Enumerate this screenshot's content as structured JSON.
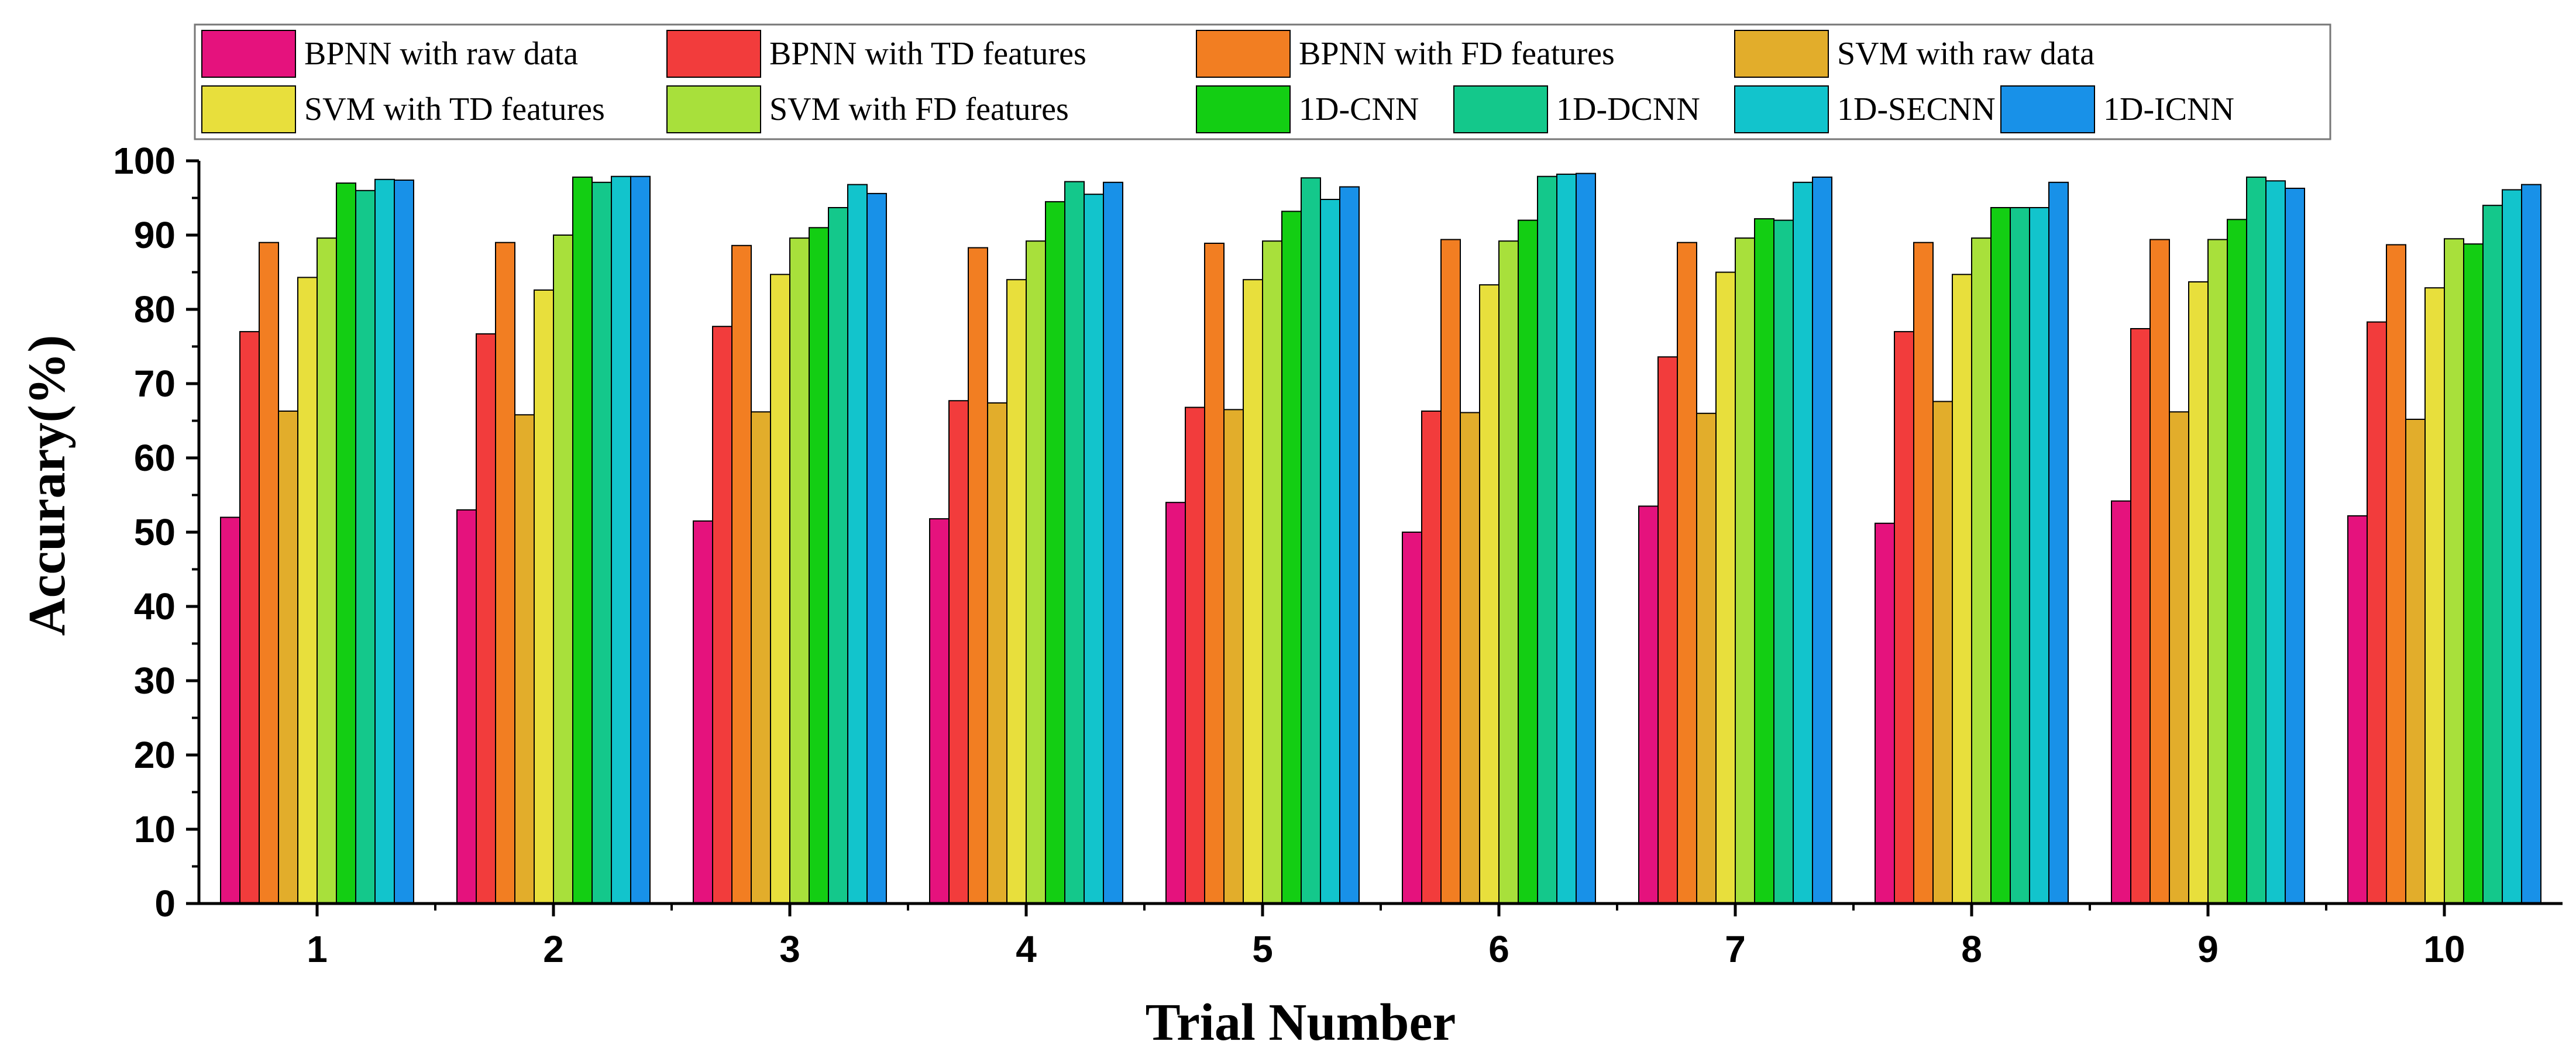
{
  "chart_data": {
    "type": "bar",
    "title": "",
    "xlabel": "Trial Number",
    "ylabel": "Accurary(%)",
    "ylim": [
      0,
      100
    ],
    "yticks": [
      0,
      10,
      20,
      30,
      40,
      50,
      60,
      70,
      80,
      90,
      100
    ],
    "legend_position": "top",
    "categories": [
      "1",
      "2",
      "3",
      "4",
      "5",
      "6",
      "7",
      "8",
      "9",
      "10"
    ],
    "series": [
      {
        "name": "BPNN with raw data",
        "color": "#E5127D",
        "values": [
          52.0,
          53.0,
          51.5,
          51.8,
          54.0,
          50.0,
          53.5,
          51.2,
          54.2,
          52.2
        ]
      },
      {
        "name": "BPNN with TD features",
        "color": "#F23C3C",
        "values": [
          77.0,
          76.7,
          77.7,
          67.7,
          66.8,
          66.3,
          73.6,
          77.0,
          77.4,
          78.3
        ]
      },
      {
        "name": "BPNN with FD features",
        "color": "#F27E22",
        "values": [
          89.0,
          89.0,
          88.6,
          88.3,
          88.9,
          89.4,
          89.0,
          89.0,
          89.4,
          88.7
        ]
      },
      {
        "name": "SVM with raw data",
        "color": "#E2AD2B",
        "values": [
          66.3,
          65.8,
          66.2,
          67.4,
          66.5,
          66.1,
          66.0,
          67.6,
          66.2,
          65.2
        ]
      },
      {
        "name": "SVM with TD features",
        "color": "#E8DF3C",
        "values": [
          84.3,
          82.6,
          84.7,
          84.0,
          84.0,
          83.3,
          85.0,
          84.7,
          83.7,
          82.9
        ]
      },
      {
        "name": "SVM with FD features",
        "color": "#A8E03B",
        "values": [
          89.6,
          90.0,
          89.6,
          89.2,
          89.2,
          89.2,
          89.6,
          89.6,
          89.4,
          89.5
        ]
      },
      {
        "name": "1D-CNN",
        "color": "#13CE13",
        "values": [
          97.0,
          97.8,
          91.0,
          94.5,
          93.2,
          92.0,
          92.2,
          93.7,
          92.1,
          88.8
        ]
      },
      {
        "name": "1D-DCNN",
        "color": "#14C88B",
        "values": [
          96.0,
          97.1,
          93.7,
          97.2,
          97.7,
          97.9,
          92.0,
          93.7,
          97.8,
          94.0
        ]
      },
      {
        "name": "1D-SECNN",
        "color": "#12C4CC",
        "values": [
          97.5,
          97.9,
          96.8,
          95.5,
          94.8,
          98.2,
          97.1,
          93.7,
          97.3,
          96.1
        ]
      },
      {
        "name": "1D-ICNN",
        "color": "#1891E8",
        "values": [
          97.4,
          97.9,
          95.6,
          97.1,
          96.5,
          98.3,
          97.8,
          97.1,
          96.3,
          96.8
        ]
      }
    ]
  }
}
